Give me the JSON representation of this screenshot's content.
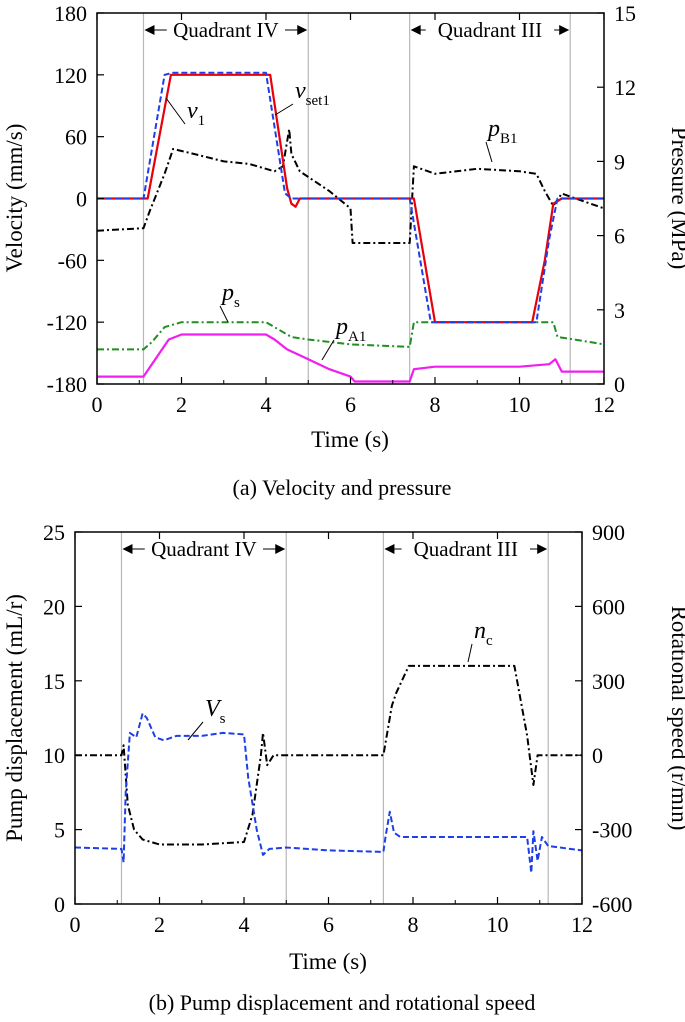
{
  "chart_data": [
    {
      "type": "line",
      "caption": "(a) Velocity and pressure",
      "xlabel": "Time (s)",
      "ylabel": "Velocity (mm/s)",
      "y2label": "Pressure (MPa)",
      "xlim": [
        0,
        12
      ],
      "ylim": [
        -180,
        180
      ],
      "y2lim": [
        0,
        15
      ],
      "xticks": [
        "0",
        "2",
        "4",
        "6",
        "8",
        "10",
        "12"
      ],
      "yticks": [
        "-180",
        "-120",
        "-60",
        "0",
        "60",
        "120",
        "180"
      ],
      "y2ticks": [
        "0",
        "3",
        "6",
        "9",
        "12",
        "15"
      ],
      "grid": false,
      "regions": [
        {
          "label": "Quadrant IV",
          "x": [
            1.1,
            5.0
          ]
        },
        {
          "label": "Quadrant III",
          "x": [
            7.4,
            11.2
          ]
        }
      ],
      "series": [
        {
          "name": "v_set1",
          "axis": "left",
          "color": "#e8000b",
          "style": "solid",
          "x": [
            0,
            1.2,
            1.75,
            4.1,
            4.5,
            4.6,
            4.7,
            4.8,
            7.5,
            8.0,
            10.3,
            10.6,
            10.8,
            11.0,
            12
          ],
          "y": [
            0,
            0,
            120,
            120,
            10,
            -5,
            -8,
            0,
            0,
            -120,
            -120,
            -60,
            -5,
            0,
            0
          ]
        },
        {
          "name": "v_1",
          "axis": "left",
          "color": "#1e3fe8",
          "style": "dashed",
          "x": [
            0,
            1.1,
            1.6,
            1.8,
            4.0,
            4.45,
            4.6,
            7.4,
            7.9,
            10.4,
            10.7,
            10.9,
            12
          ],
          "y": [
            0,
            0,
            120,
            122,
            122,
            5,
            0,
            0,
            -120,
            -120,
            -40,
            0,
            0
          ]
        },
        {
          "name": "p_B1",
          "axis": "right",
          "color": "#000000",
          "style": "dashdot",
          "x": [
            0,
            1.1,
            1.25,
            1.6,
            1.8,
            2.3,
            3.0,
            3.6,
            4.2,
            4.4,
            4.55,
            4.6,
            4.8,
            5.5,
            6.0,
            6.05,
            7.4,
            7.5,
            8.0,
            9.0,
            10.0,
            10.4,
            10.6,
            10.8,
            11.0,
            11.5,
            12
          ],
          "y": [
            6.2,
            6.3,
            7.0,
            8.5,
            9.5,
            9.3,
            9.0,
            8.9,
            8.6,
            8.8,
            10.3,
            9.3,
            8.6,
            7.8,
            7.1,
            5.7,
            5.7,
            8.8,
            8.5,
            8.7,
            8.6,
            8.5,
            7.8,
            7.2,
            7.7,
            7.4,
            7.1
          ]
        },
        {
          "name": "p_s",
          "axis": "right",
          "color": "#1f8f1f",
          "style": "dashdot",
          "x": [
            0,
            1.1,
            1.3,
            1.6,
            2.0,
            3.0,
            4.0,
            4.3,
            4.6,
            5.0,
            6.0,
            7.4,
            7.5,
            8.0,
            10.8,
            10.9,
            11.3,
            12
          ],
          "y": [
            1.4,
            1.4,
            1.7,
            2.3,
            2.5,
            2.5,
            2.5,
            2.2,
            1.9,
            1.8,
            1.6,
            1.5,
            2.5,
            2.5,
            2.5,
            1.9,
            1.8,
            1.6
          ]
        },
        {
          "name": "p_A1",
          "axis": "right",
          "color": "#f01ef0",
          "style": "solid",
          "x": [
            0,
            1.1,
            1.3,
            1.7,
            2.0,
            3.0,
            4.0,
            4.2,
            4.5,
            5.0,
            5.5,
            6.0,
            6.1,
            7.4,
            7.5,
            8.0,
            10.0,
            10.7,
            10.85,
            11.0,
            12
          ],
          "y": [
            0.3,
            0.3,
            0.8,
            1.8,
            2.0,
            2.0,
            2.0,
            1.8,
            1.4,
            1.0,
            0.6,
            0.3,
            0.1,
            0.1,
            0.6,
            0.7,
            0.7,
            0.8,
            1.0,
            0.5,
            0.5
          ]
        }
      ],
      "annotations": [
        {
          "text": "v",
          "sub": "1",
          "target": "v_1"
        },
        {
          "text": "v",
          "sub": "set1",
          "target": "v_set1"
        },
        {
          "text": "p",
          "sub": "B1",
          "target": "p_B1"
        },
        {
          "text": "p",
          "sub": "s",
          "target": "p_s"
        },
        {
          "text": "p",
          "sub": "A1",
          "target": "p_A1"
        }
      ]
    },
    {
      "type": "line",
      "caption": "(b) Pump displacement and rotational speed",
      "xlabel": "Time (s)",
      "ylabel": "Pump displacement (mL/r)",
      "y2label": "Rotational speed (r/min)",
      "xlim": [
        0,
        12
      ],
      "ylim": [
        0,
        25
      ],
      "y2lim": [
        -600,
        900
      ],
      "xticks": [
        "0",
        "2",
        "4",
        "6",
        "8",
        "10",
        "12"
      ],
      "yticks": [
        "0",
        "5",
        "10",
        "15",
        "20",
        "25"
      ],
      "y2ticks": [
        "-600",
        "-300",
        "0",
        "300",
        "600",
        "900"
      ],
      "grid": false,
      "regions": [
        {
          "label": "Quadrant IV",
          "x": [
            1.1,
            5.0
          ]
        },
        {
          "label": "Quadrant III",
          "x": [
            7.3,
            11.2
          ]
        }
      ],
      "series": [
        {
          "name": "V_s",
          "axis": "left",
          "color": "#1e3fe8",
          "style": "dashed",
          "x": [
            0,
            1.1,
            1.15,
            1.2,
            1.3,
            1.45,
            1.6,
            1.7,
            1.9,
            2.1,
            2.4,
            3.0,
            3.5,
            4.0,
            4.1,
            4.3,
            4.45,
            4.6,
            5.0,
            6.0,
            7.3,
            7.35,
            7.45,
            7.55,
            7.7,
            8.0,
            9.0,
            10.0,
            10.7,
            10.8,
            10.85,
            10.95,
            11.05,
            11.2,
            12
          ],
          "y": [
            3.8,
            3.7,
            2.8,
            7.5,
            11.5,
            11.2,
            12.8,
            12.5,
            11.2,
            11.0,
            11.3,
            11.3,
            11.5,
            11.4,
            8.5,
            5.0,
            3.3,
            3.7,
            3.8,
            3.6,
            3.5,
            4.5,
            6.2,
            4.8,
            4.5,
            4.5,
            4.5,
            4.5,
            4.5,
            2.1,
            4.9,
            2.9,
            4.5,
            3.9,
            3.6
          ]
        },
        {
          "name": "n_c",
          "axis": "right",
          "color": "#000000",
          "style": "dashdot",
          "x": [
            0,
            1.1,
            1.15,
            1.25,
            1.4,
            1.6,
            2.0,
            3.0,
            4.0,
            4.2,
            4.4,
            4.45,
            4.55,
            4.7,
            5.0,
            6.0,
            7.3,
            7.5,
            7.6,
            7.9,
            8.0,
            9.0,
            10.0,
            10.4,
            10.7,
            10.85,
            10.95,
            11.1,
            12
          ],
          "y": [
            0,
            0,
            40,
            -200,
            -300,
            -340,
            -360,
            -360,
            -350,
            -240,
            0,
            90,
            -40,
            0,
            0,
            0,
            0,
            200,
            250,
            360,
            360,
            360,
            360,
            360,
            80,
            -120,
            0,
            0,
            0
          ]
        }
      ],
      "annotations": [
        {
          "text": "V",
          "sub": "s",
          "target": "V_s"
        },
        {
          "text": "n",
          "sub": "c",
          "target": "n_c"
        }
      ]
    }
  ]
}
